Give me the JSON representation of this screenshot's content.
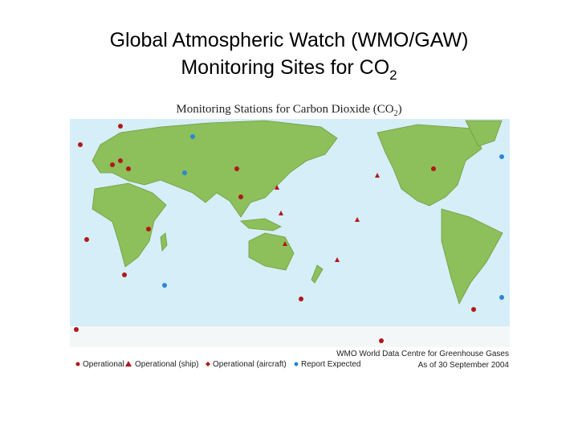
{
  "slide": {
    "title_line1": "Global Atmospheric Watch (WMO/GAW)",
    "title_line2": "Monitoring Sites for CO",
    "title_subscript": "2"
  },
  "map": {
    "heading": "Monitoring Stations for Carbon Dioxide (CO",
    "heading_subscript": "2",
    "heading_end": ")",
    "legend": [
      "Operational",
      "Operational (ship)",
      "Operational (aircraft)",
      "Report Expected"
    ],
    "credit": "WMO World Data Centre for Greenhouse Gases",
    "date": "As of 30 September 2004"
  }
}
